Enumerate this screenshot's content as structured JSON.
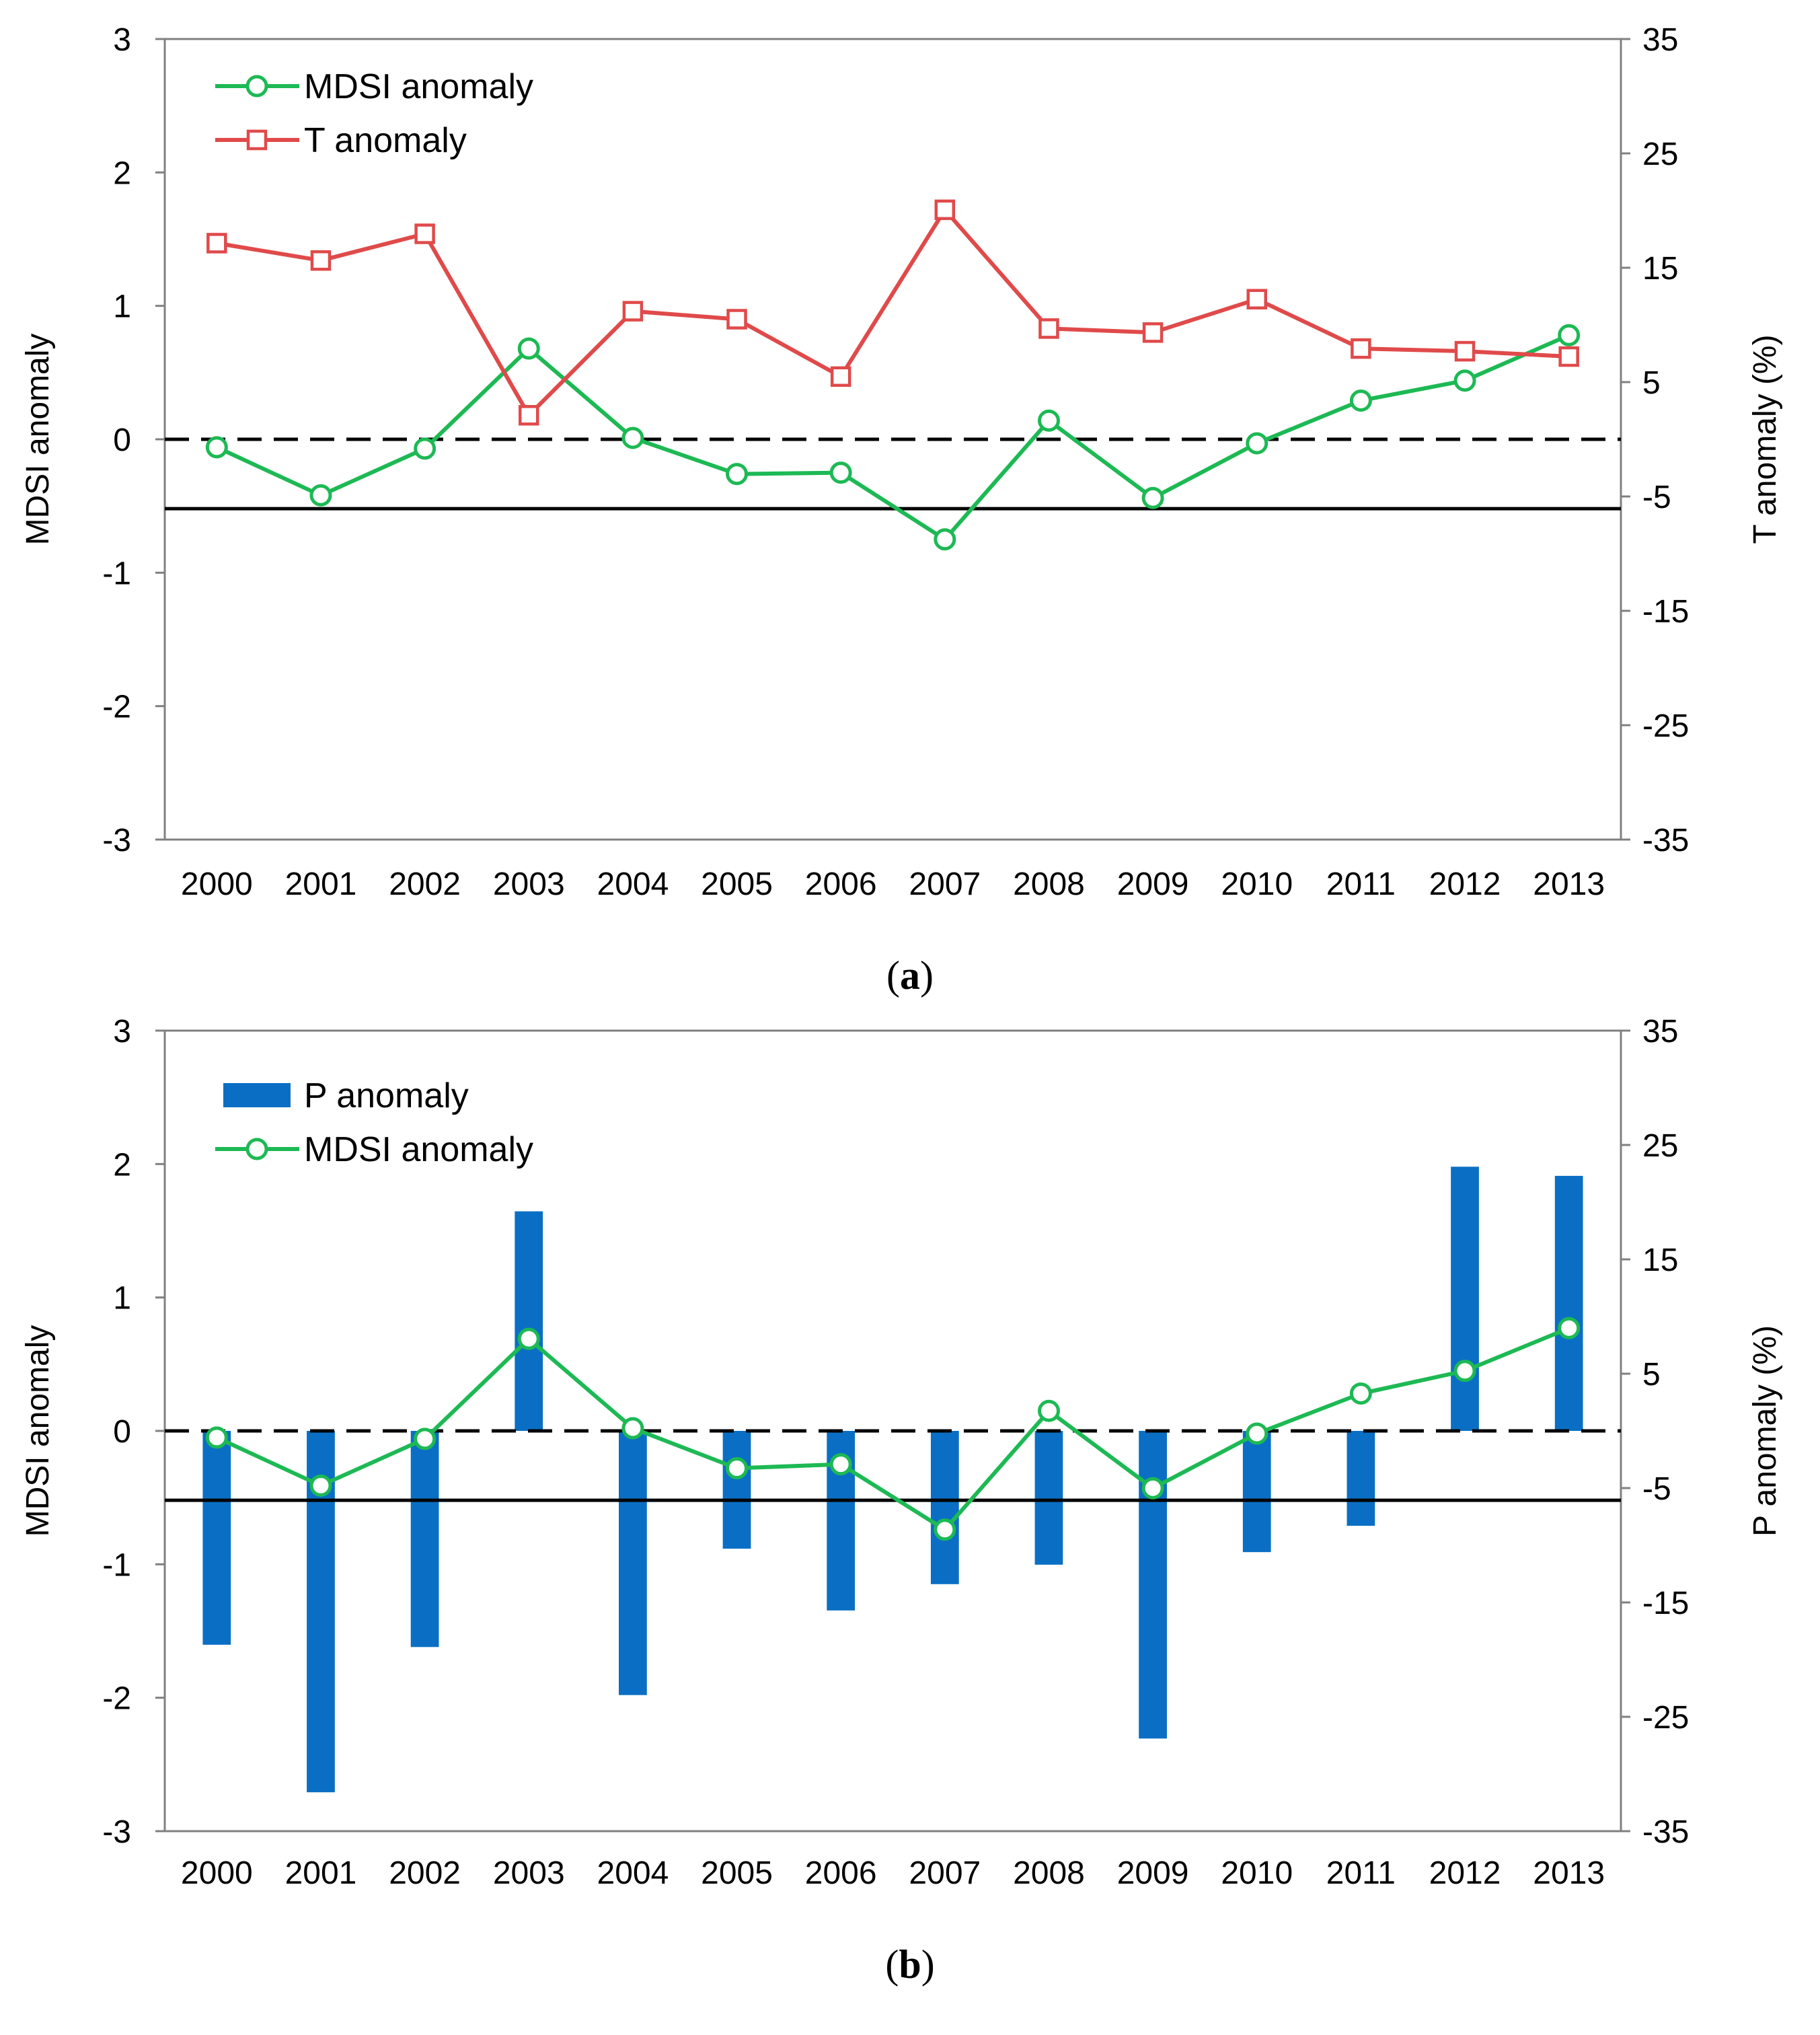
{
  "chart_data": [
    {
      "id": "a",
      "type": "line",
      "caption": {
        "open": "(",
        "letter": "a",
        "close": ")"
      },
      "categories": [
        "2000",
        "2001",
        "2002",
        "2003",
        "2004",
        "2005",
        "2006",
        "2007",
        "2008",
        "2009",
        "2010",
        "2011",
        "2012",
        "2013"
      ],
      "left_axis": {
        "label": "MDSI anomaly",
        "ylim": [
          -3,
          3
        ],
        "ticks": [
          "3",
          "2",
          "1",
          "0",
          "-1",
          "-2",
          "-3"
        ]
      },
      "right_axis": {
        "label": "T anomaly (%)",
        "ylim": [
          -35,
          35
        ],
        "ticks": [
          "35",
          "25",
          "15",
          "5",
          "-5",
          "-15",
          "-25",
          "-35"
        ]
      },
      "reference_lines": [
        {
          "name": "zero-line",
          "axis": "left",
          "value": 0,
          "style": "dashed",
          "color": "#000000"
        },
        {
          "name": "threshold-line",
          "axis": "left",
          "value": -0.52,
          "style": "solid",
          "color": "#000000"
        }
      ],
      "series": [
        {
          "name": "MDSI anomaly",
          "axis": "left",
          "kind": "line",
          "marker": "circle",
          "color": "#1db954",
          "values": [
            -0.06,
            -0.42,
            -0.07,
            0.68,
            0.01,
            -0.26,
            -0.25,
            -0.75,
            0.14,
            -0.44,
            -0.03,
            0.29,
            0.44,
            0.78
          ]
        },
        {
          "name": "T anomaly",
          "axis": "left",
          "kind": "line",
          "marker": "square",
          "color": "#e04a4a",
          "values": [
            1.47,
            1.34,
            1.54,
            0.18,
            0.96,
            0.9,
            0.47,
            1.72,
            0.83,
            0.8,
            1.05,
            0.68,
            0.66,
            0.62
          ]
        }
      ],
      "legend": {
        "position": "top-left",
        "entries": [
          "MDSI anomaly",
          "T anomaly"
        ]
      }
    },
    {
      "id": "b",
      "type": "bar",
      "caption": {
        "open": "(",
        "letter": "b",
        "close": ")"
      },
      "categories": [
        "2000",
        "2001",
        "2002",
        "2003",
        "2004",
        "2005",
        "2006",
        "2007",
        "2008",
        "2009",
        "2010",
        "2011",
        "2012",
        "2013"
      ],
      "left_axis": {
        "label": "MDSI anomaly",
        "ylim": [
          -3,
          3
        ],
        "ticks": [
          "3",
          "2",
          "1",
          "0",
          "-1",
          "-2",
          "-3"
        ]
      },
      "right_axis": {
        "label": "P anomaly (%)",
        "ylim": [
          -35,
          35
        ],
        "ticks": [
          "35",
          "25",
          "15",
          "5",
          "-5",
          "-15",
          "-25",
          "-35"
        ]
      },
      "reference_lines": [
        {
          "name": "zero-line",
          "axis": "left",
          "value": 0,
          "style": "dashed",
          "color": "#000000"
        },
        {
          "name": "threshold-line",
          "axis": "left",
          "value": -0.52,
          "style": "solid",
          "color": "#000000"
        }
      ],
      "series": [
        {
          "name": "P anomaly",
          "axis": "right",
          "kind": "bar",
          "color": "#0a6fc4",
          "values": [
            -18.7,
            -31.6,
            -18.9,
            19.2,
            -23.1,
            -10.3,
            -15.7,
            -13.4,
            -11.7,
            -26.9,
            -10.6,
            -8.3,
            23.1,
            22.3
          ]
        },
        {
          "name": "MDSI anomaly",
          "axis": "left",
          "kind": "line",
          "marker": "circle",
          "color": "#1db954",
          "values": [
            -0.05,
            -0.41,
            -0.06,
            0.69,
            0.02,
            -0.28,
            -0.25,
            -0.74,
            0.15,
            -0.43,
            -0.02,
            0.28,
            0.45,
            0.77
          ]
        }
      ],
      "legend": {
        "position": "top-left",
        "entries": [
          "P anomaly",
          "MDSI anomaly"
        ]
      }
    }
  ]
}
